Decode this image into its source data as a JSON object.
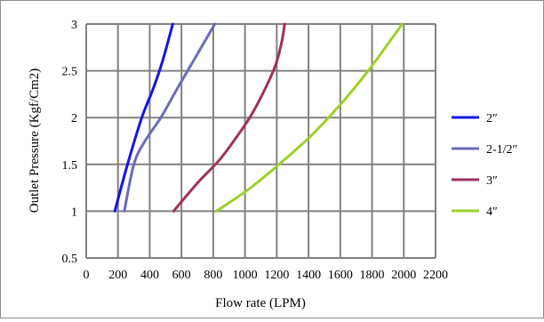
{
  "chart_data": {
    "type": "line",
    "xlabel": "Flow rate (LPM)",
    "ylabel": "Outlet Pressure  (Kgf/Cm2)",
    "xlim": [
      0,
      2200
    ],
    "ylim": [
      0.5,
      3
    ],
    "x_ticks": [
      "0",
      "200",
      "400",
      "600",
      "800",
      "1000",
      "1200",
      "1400",
      "1600",
      "1800",
      "2000",
      "2200"
    ],
    "y_ticks": [
      "0.5",
      "1",
      "1.5",
      "2",
      "2.5",
      "3"
    ],
    "grid": true,
    "legend_position": "right",
    "series": [
      {
        "name": "2″",
        "color": "#1414e6",
        "points": [
          [
            180,
            1.0
          ],
          [
            260,
            1.5
          ],
          [
            350,
            2.0
          ],
          [
            420,
            2.3
          ],
          [
            480,
            2.6
          ],
          [
            545,
            3.0
          ]
        ]
      },
      {
        "name": "2-1/2″",
        "color": "#6b6bb8",
        "points": [
          [
            240,
            1.0
          ],
          [
            300,
            1.5
          ],
          [
            370,
            1.75
          ],
          [
            470,
            2.0
          ],
          [
            570,
            2.3
          ],
          [
            690,
            2.65
          ],
          [
            810,
            3.0
          ]
        ]
      },
      {
        "name": "3″",
        "color": "#a0305e",
        "points": [
          [
            550,
            1.0
          ],
          [
            700,
            1.3
          ],
          [
            840,
            1.55
          ],
          [
            950,
            1.8
          ],
          [
            1030,
            2.0
          ],
          [
            1110,
            2.25
          ],
          [
            1190,
            2.55
          ],
          [
            1230,
            2.8
          ],
          [
            1250,
            3.0
          ]
        ]
      },
      {
        "name": "4″",
        "color": "#9fcf2a",
        "points": [
          [
            820,
            1.0
          ],
          [
            1020,
            1.23
          ],
          [
            1200,
            1.48
          ],
          [
            1400,
            1.78
          ],
          [
            1580,
            2.1
          ],
          [
            1720,
            2.38
          ],
          [
            1850,
            2.67
          ],
          [
            1990,
            3.0
          ]
        ]
      }
    ]
  }
}
